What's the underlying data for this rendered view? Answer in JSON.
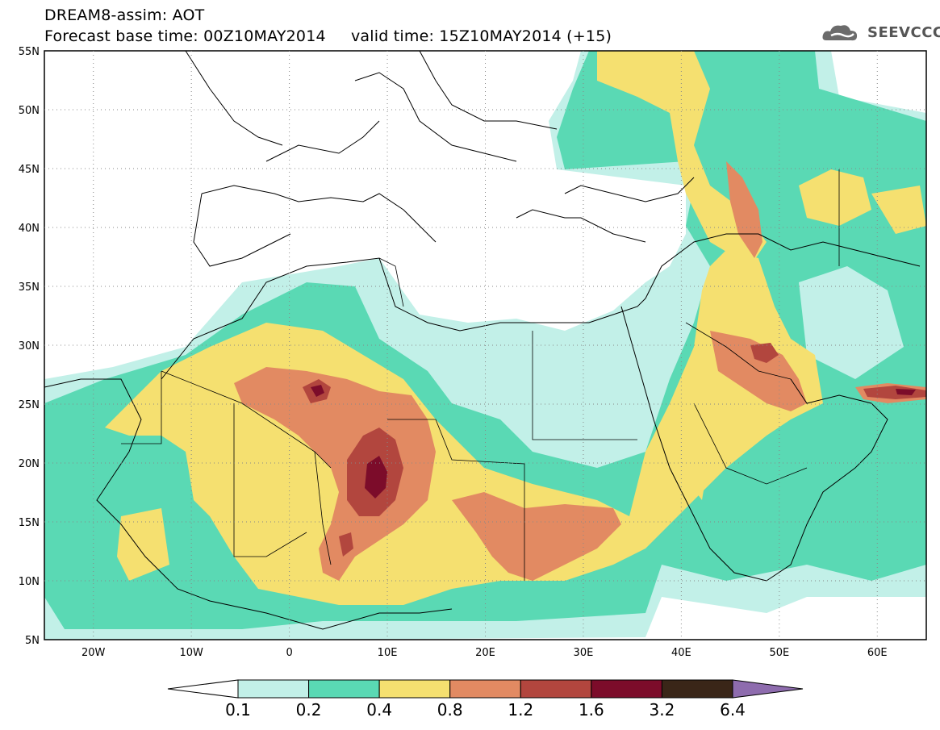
{
  "header": {
    "title": "DREAM8-assim: AOT",
    "base_time": "Forecast base time: 00Z10MAY2014",
    "valid_time": "valid time: 15Z10MAY2014 (+15)"
  },
  "logo": {
    "text": "SEEVCCC",
    "icon": "cloud-icon"
  },
  "map": {
    "lon_range": [
      -25,
      65
    ],
    "lat_range": [
      5,
      55
    ],
    "lat_labels": [
      "5N",
      "10N",
      "15N",
      "20N",
      "25N",
      "30N",
      "35N",
      "40N",
      "45N",
      "50N",
      "55N"
    ],
    "lon_labels": [
      "20W",
      "10W",
      "0",
      "10E",
      "20E",
      "30E",
      "40E",
      "50E",
      "60E"
    ],
    "grid": "dotted"
  },
  "colorbar": {
    "labels": [
      "0.1",
      "0.2",
      "0.4",
      "0.8",
      "1.2",
      "1.6",
      "3.2",
      "6.4"
    ],
    "colors": [
      "#ffffff",
      "#c2f0e8",
      "#5ad9b4",
      "#f5e070",
      "#e28a62",
      "#b2463e",
      "#7c0c2a",
      "#3a2618",
      "#8e6cae"
    ]
  },
  "colors": {
    "c1": "#c2f0e8",
    "c2": "#5ad9b4",
    "c3": "#f5e070",
    "c4": "#e28a62",
    "c5": "#b2463e",
    "c6": "#7c0c2a"
  }
}
